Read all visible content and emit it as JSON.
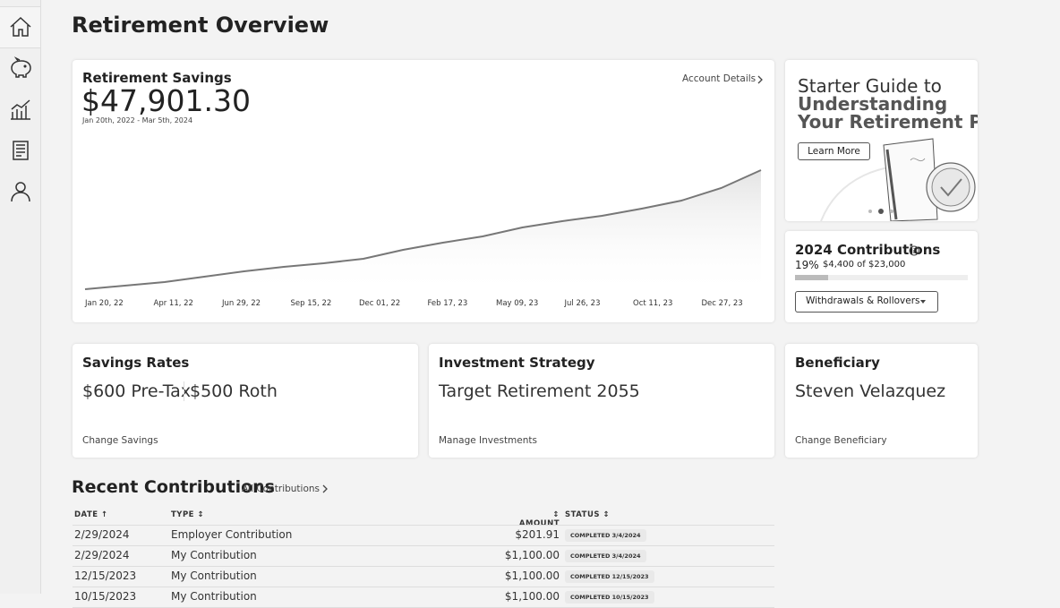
{
  "page_title": "Retirement Overview",
  "savings_card": {
    "title": "Retirement Savings",
    "balance": "$47,901.30",
    "date_range": "Jan 20th, 2022 - Mar 5th, 2024",
    "link": "Account Details",
    "chart": {
      "type": "line",
      "x_labels": [
        "Jan 20, 22",
        "Apr 11, 22",
        "Jun 29, 22",
        "Sep 15, 22",
        "Dec 01, 22",
        "Feb 17, 23",
        "May 09, 23",
        "Jul 26, 23",
        "Oct 11, 23",
        "Dec 27, 23"
      ],
      "values": [
        2395,
        3764,
        5132,
        7185,
        9238,
        10949,
        12317,
        14028,
        17450,
        20187,
        22582,
        26003,
        28398,
        30451,
        33188,
        36268,
        41058,
        47901
      ]
    }
  },
  "guide": {
    "line1": "Starter Guide to",
    "line2": "Understanding",
    "line3": "Your Retirement Plan",
    "button": "Learn More"
  },
  "contributions": {
    "title": "2024 Contributions",
    "percent": {
      "value": 19,
      "label": "19%"
    },
    "progress_text": "$4,400 of $23,000",
    "button": "Withdrawals & Rollovers"
  },
  "cards": [
    {
      "title": "Savings Rates",
      "value_a": "$600 Pre-Tax",
      "value_b": "$500 Roth",
      "link": "Change Savings"
    },
    {
      "title": "Investment Strategy",
      "value_a": "Target Retirement 2055",
      "link": "Manage Investments"
    },
    {
      "title": "Beneficiary",
      "value_a": "Steven Velazquez",
      "link": "Change Beneficiary"
    }
  ],
  "recent": {
    "title": "Recent Contributions",
    "link": "All Contributions",
    "columns": [
      "DATE",
      "TYPE",
      "AMOUNT",
      "STATUS"
    ],
    "rows": [
      [
        "2/29/2024",
        "Employer Contribution",
        "$201.91",
        "COMPLETED 3/4/2024"
      ],
      [
        "2/29/2024",
        "My Contribution",
        "$1,100.00",
        "COMPLETED 3/4/2024"
      ],
      [
        "12/15/2023",
        "My Contribution",
        "$1,100.00",
        "COMPLETED 12/15/2023"
      ],
      [
        "10/15/2023",
        "My Contribution",
        "$1,100.00",
        "COMPLETED 10/15/2023"
      ]
    ]
  }
}
